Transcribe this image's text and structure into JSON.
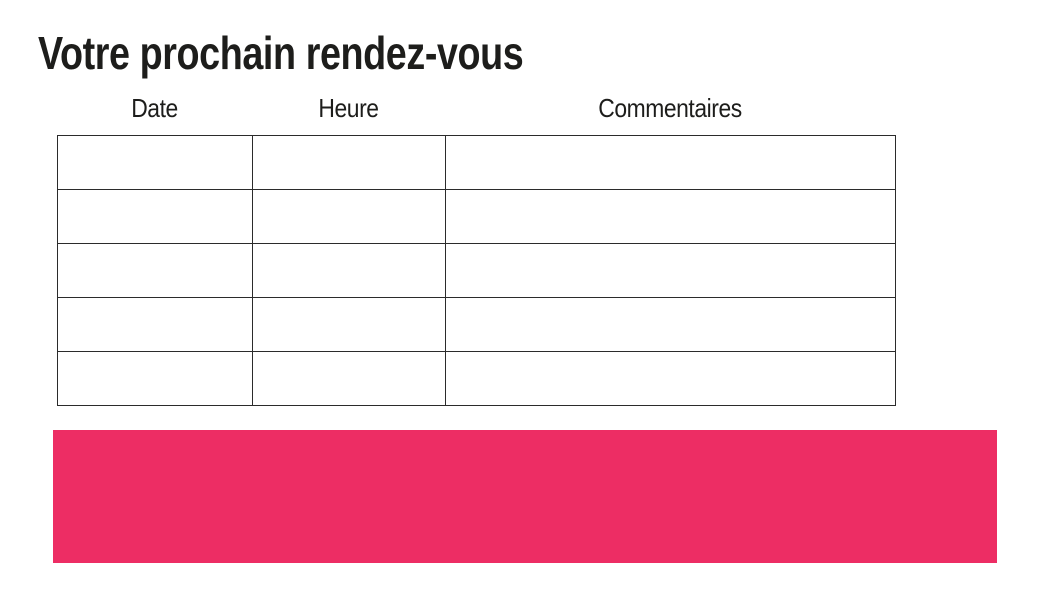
{
  "page": {
    "title": "Votre prochain rendez-vous"
  },
  "appointments_table": {
    "headers": [
      "Date",
      "Heure",
      "Commentaires"
    ],
    "row_count": 5,
    "rows": [
      [
        "",
        "",
        ""
      ],
      [
        "",
        "",
        ""
      ],
      [
        "",
        "",
        ""
      ],
      [
        "",
        "",
        ""
      ],
      [
        "",
        "",
        ""
      ]
    ]
  },
  "colors": {
    "text": "#1D1D1B",
    "table_border": "#2B2B2B",
    "accent_pink": "#ED2D64",
    "background": "#FFFFFF"
  }
}
